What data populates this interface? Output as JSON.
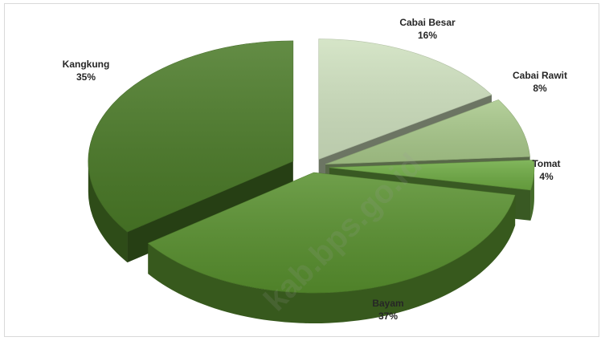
{
  "chart_data": {
    "type": "pie",
    "style": "3d-exploded",
    "title": "",
    "slices": [
      {
        "label": "Cabai Besar",
        "value": 16,
        "value_label": "16%",
        "color": "#cfe1bf"
      },
      {
        "label": "Cabai Rawit",
        "value": 8,
        "value_label": "8%",
        "color": "#a9c98b"
      },
      {
        "label": "Tomat",
        "value": 4,
        "value_label": "4%",
        "color": "#6eab43"
      },
      {
        "label": "Bayam",
        "value": 37,
        "value_label": "37%",
        "color": "#58902e"
      },
      {
        "label": "Kangkung",
        "value": 35,
        "value_label": "35%",
        "color": "#4a7a27"
      }
    ]
  },
  "watermark": "kab.bps.go.id"
}
